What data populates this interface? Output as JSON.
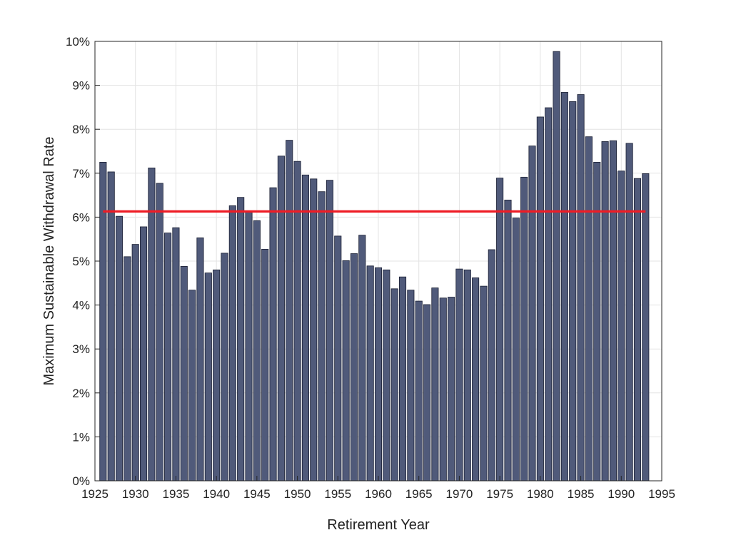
{
  "chart_data": {
    "type": "bar",
    "title": "",
    "xlabel": "Retirement Year",
    "ylabel": "Maximum Sustainable Withdrawal Rate",
    "xlim": [
      1925,
      1995
    ],
    "ylim": [
      0,
      10
    ],
    "x_ticks": [
      1925,
      1930,
      1935,
      1940,
      1945,
      1950,
      1955,
      1960,
      1965,
      1970,
      1975,
      1980,
      1985,
      1990,
      1995
    ],
    "y_ticks": [
      0,
      1,
      2,
      3,
      4,
      5,
      6,
      7,
      8,
      9,
      10
    ],
    "y_tick_labels": [
      "0%",
      "1%",
      "2%",
      "3%",
      "4%",
      "5%",
      "6%",
      "7%",
      "8%",
      "9%",
      "10%"
    ],
    "grid": true,
    "bar_color": "#505a7a",
    "reference_line": {
      "value": 6.13,
      "x_start": 1926,
      "x_end": 1993,
      "color": "#ee1c25"
    },
    "x": [
      1926,
      1927,
      1928,
      1929,
      1930,
      1931,
      1932,
      1933,
      1934,
      1935,
      1936,
      1937,
      1938,
      1939,
      1940,
      1941,
      1942,
      1943,
      1944,
      1945,
      1946,
      1947,
      1948,
      1949,
      1950,
      1951,
      1952,
      1953,
      1954,
      1955,
      1956,
      1957,
      1958,
      1959,
      1960,
      1961,
      1962,
      1963,
      1964,
      1965,
      1966,
      1967,
      1968,
      1969,
      1970,
      1971,
      1972,
      1973,
      1974,
      1975,
      1976,
      1977,
      1978,
      1979,
      1980,
      1981,
      1982,
      1983,
      1984,
      1985,
      1986,
      1987,
      1988,
      1989,
      1990,
      1991,
      1992,
      1993
    ],
    "values": [
      7.25,
      7.03,
      6.02,
      5.1,
      5.38,
      5.78,
      7.12,
      6.77,
      5.64,
      5.76,
      4.88,
      4.34,
      5.53,
      4.73,
      4.8,
      5.18,
      6.26,
      6.45,
      6.12,
      5.92,
      5.27,
      6.67,
      7.39,
      7.75,
      7.27,
      6.96,
      6.87,
      6.58,
      6.84,
      5.57,
      5.01,
      5.17,
      5.59,
      4.89,
      4.85,
      4.8,
      4.37,
      4.64,
      4.34,
      4.09,
      4.01,
      4.39,
      4.16,
      4.18,
      4.82,
      4.8,
      4.62,
      4.43,
      5.26,
      6.89,
      6.39,
      5.98,
      6.91,
      7.62,
      8.28,
      8.49,
      9.77,
      8.84,
      8.63,
      8.79,
      7.83,
      7.25,
      7.72,
      7.74,
      7.05,
      7.68,
      6.88,
      6.99
    ]
  }
}
